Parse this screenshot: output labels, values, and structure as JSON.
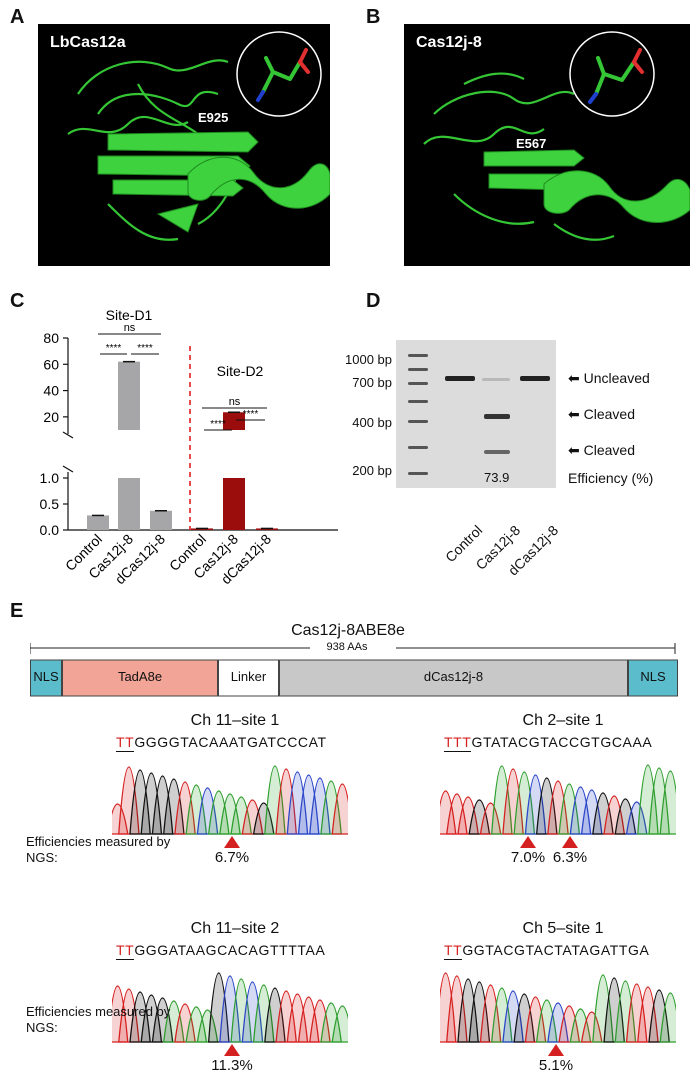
{
  "panels": {
    "a": "A",
    "b": "B",
    "c": "C",
    "d": "D",
    "e": "E"
  },
  "structure_a": {
    "name": "LbCas12a",
    "residue": "E925"
  },
  "structure_b": {
    "name": "Cas12j-8",
    "residue": "E567"
  },
  "chart_data": {
    "type": "bar",
    "groups": [
      {
        "title": "Site-D1",
        "categories": [
          "Control",
          "Cas12j-8",
          "dCas12j-8"
        ],
        "values": [
          0.28,
          62.0,
          0.37
        ],
        "color": "#a6a6a8"
      },
      {
        "title": "Site-D2",
        "categories": [
          "Control",
          "Cas12j-8",
          "dCas12j-8"
        ],
        "values": [
          0.03,
          23.5,
          0.03
        ],
        "color": "#9b0d0d"
      }
    ],
    "yaxis": {
      "upper": {
        "range": [
          10,
          80
        ],
        "ticks": [
          "20",
          "40",
          "60",
          "80"
        ]
      },
      "lower": {
        "range": [
          0,
          1.0
        ],
        "ticks": [
          "0.0",
          "0.5",
          "1.0"
        ]
      }
    },
    "significance": [
      {
        "group": 0,
        "from": 0,
        "to": 1,
        "label": "****"
      },
      {
        "group": 0,
        "from": 1,
        "to": 2,
        "label": "****"
      },
      {
        "group": 0,
        "from": 0,
        "to": 2,
        "label": "ns"
      },
      {
        "group": 1,
        "from": 0,
        "to": 1,
        "label": "****"
      },
      {
        "group": 1,
        "from": 1,
        "to": 2,
        "label": "****"
      },
      {
        "group": 1,
        "from": 0,
        "to": 2,
        "label": "ns"
      }
    ]
  },
  "gel": {
    "ladder": [
      "1000 bp",
      "700 bp",
      "400 bp",
      "200 bp"
    ],
    "bands": [
      "Uncleaved",
      "Cleaved",
      "Cleaved"
    ],
    "efficiency_label": "Efficiency (%)",
    "efficiency_value": "73.9",
    "lanes": [
      "Control",
      "Cas12j-8",
      "dCas12j-8"
    ]
  },
  "construct": {
    "title": "Cas12j-8ABE8e",
    "length": "938 AAs",
    "domains": [
      {
        "label": "NLS",
        "color": "#5bbccc"
      },
      {
        "label": "TadA8e",
        "color": "#f2a496"
      },
      {
        "label": "Linker",
        "color": "#ffffff"
      },
      {
        "label": "dCas12j-8",
        "color": "#c8c8c8"
      },
      {
        "label": "NLS",
        "color": "#5bbccc"
      }
    ]
  },
  "efficiency_note": "Efficiencies measured by NGS:",
  "sites": [
    {
      "title": "Ch 11–site 1",
      "pam": "TT",
      "sequence": "GGGGTACAAATGATCCCAT",
      "efficiencies": [
        "6.7%"
      ]
    },
    {
      "title": "Ch 2–site 1",
      "pam": "TTT",
      "sequence": "GTATACGTACCGTGCAAA",
      "efficiencies": [
        "7.0%",
        "6.3%"
      ]
    },
    {
      "title": "Ch 11–site 2",
      "pam": "TT",
      "sequence": "GGGATAAGCACAGTTTTAA",
      "efficiencies": [
        "11.3%"
      ]
    },
    {
      "title": "Ch 5–site 1",
      "pam": "TT",
      "sequence": "GGTACGTACTATAGATTGA",
      "efficiencies": [
        "5.1%"
      ]
    }
  ],
  "base_colors": {
    "A": "#2e9e2e",
    "C": "#2a45c8",
    "G": "#111111",
    "T": "#d62020"
  }
}
